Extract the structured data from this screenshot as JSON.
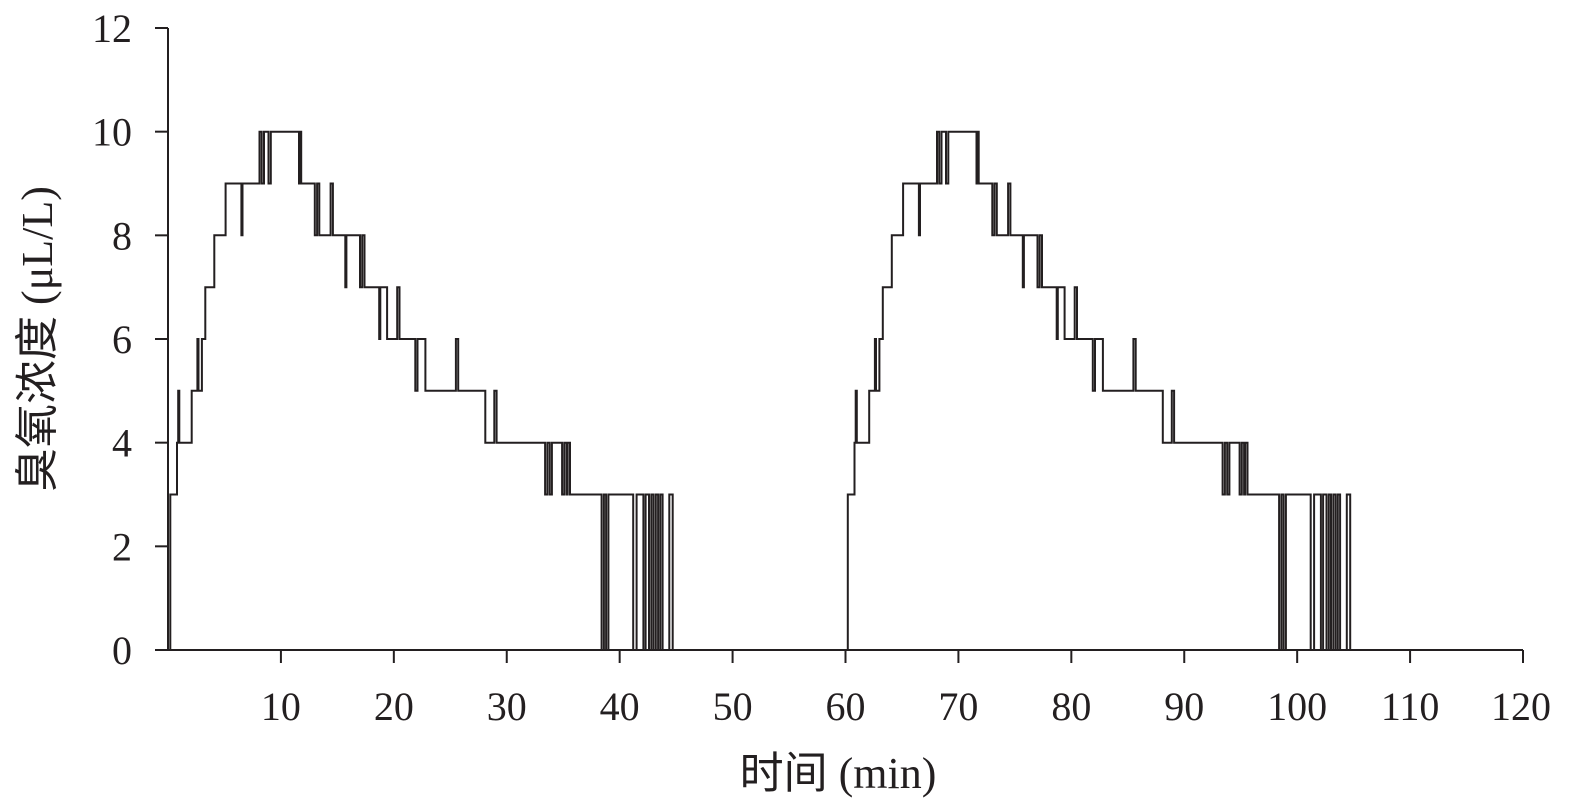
{
  "chart_data": {
    "type": "line",
    "xlabel": "时间 (min)",
    "ylabel": "臭氧浓度 (μL/L)",
    "xlim": [
      0,
      120
    ],
    "ylim": [
      0,
      12
    ],
    "x_ticks": [
      10,
      20,
      30,
      40,
      50,
      60,
      70,
      80,
      90,
      100,
      110,
      120
    ],
    "y_ticks": [
      0,
      2,
      4,
      6,
      8,
      10,
      12
    ],
    "grid": false,
    "series": [
      {
        "step": true,
        "color": "#231f20",
        "points": [
          [
            0.0,
            0
          ],
          [
            0.2,
            3
          ],
          [
            0.7,
            3
          ],
          [
            0.8,
            4
          ],
          [
            0.9,
            5
          ],
          [
            1.0,
            4
          ],
          [
            2.0,
            4
          ],
          [
            2.1,
            5
          ],
          [
            2.5,
            5
          ],
          [
            2.6,
            6
          ],
          [
            2.7,
            5
          ],
          [
            3.0,
            6
          ],
          [
            3.2,
            6
          ],
          [
            3.3,
            7
          ],
          [
            4.0,
            7
          ],
          [
            4.1,
            8
          ],
          [
            5.0,
            8
          ],
          [
            5.1,
            9
          ],
          [
            6.4,
            9
          ],
          [
            6.5,
            8
          ],
          [
            6.6,
            9
          ],
          [
            8.0,
            9
          ],
          [
            8.1,
            10
          ],
          [
            8.3,
            9
          ],
          [
            8.5,
            10
          ],
          [
            8.8,
            10
          ],
          [
            8.9,
            9
          ],
          [
            9.1,
            10
          ],
          [
            11.5,
            10
          ],
          [
            11.6,
            9
          ],
          [
            11.7,
            10
          ],
          [
            11.8,
            9
          ],
          [
            12.9,
            9
          ],
          [
            13.0,
            8
          ],
          [
            13.2,
            9
          ],
          [
            13.4,
            8
          ],
          [
            14.3,
            8
          ],
          [
            14.4,
            9
          ],
          [
            14.6,
            8
          ],
          [
            15.6,
            8
          ],
          [
            15.7,
            7
          ],
          [
            15.8,
            8
          ],
          [
            16.9,
            8
          ],
          [
            17.0,
            7
          ],
          [
            17.2,
            8
          ],
          [
            17.4,
            7
          ],
          [
            18.6,
            7
          ],
          [
            18.7,
            6
          ],
          [
            18.8,
            7
          ],
          [
            19.2,
            7
          ],
          [
            19.4,
            6
          ],
          [
            20.2,
            6
          ],
          [
            20.3,
            7
          ],
          [
            20.5,
            6
          ],
          [
            21.8,
            6
          ],
          [
            21.9,
            5
          ],
          [
            22.1,
            6
          ],
          [
            22.6,
            6
          ],
          [
            22.8,
            5
          ],
          [
            25.4,
            5
          ],
          [
            25.5,
            6
          ],
          [
            25.7,
            5
          ],
          [
            28.0,
            5
          ],
          [
            28.1,
            4
          ],
          [
            28.8,
            4
          ],
          [
            28.9,
            5
          ],
          [
            29.1,
            4
          ],
          [
            33.3,
            4
          ],
          [
            33.4,
            3
          ],
          [
            33.6,
            4
          ],
          [
            33.8,
            3
          ],
          [
            34.0,
            4
          ],
          [
            34.8,
            4
          ],
          [
            34.9,
            3
          ],
          [
            35.1,
            4
          ],
          [
            35.3,
            3
          ],
          [
            35.4,
            4
          ],
          [
            35.6,
            3
          ],
          [
            38.3,
            3
          ],
          [
            38.4,
            0
          ],
          [
            38.6,
            3
          ],
          [
            38.8,
            0
          ],
          [
            39.0,
            3
          ],
          [
            41.1,
            3
          ],
          [
            41.2,
            0
          ],
          [
            41.5,
            3
          ],
          [
            42.0,
            3
          ],
          [
            42.1,
            0
          ],
          [
            42.3,
            3
          ],
          [
            42.6,
            0
          ],
          [
            42.8,
            3
          ],
          [
            43.0,
            0
          ],
          [
            43.2,
            3
          ],
          [
            43.4,
            0
          ],
          [
            43.6,
            3
          ],
          [
            43.8,
            0
          ],
          [
            44.3,
            0
          ],
          [
            44.4,
            3
          ],
          [
            44.6,
            3
          ],
          [
            44.7,
            0
          ],
          [
            45.0,
            0
          ]
        ]
      },
      {
        "step": true,
        "color": "#231f20",
        "points": [
          [
            60.0,
            0
          ],
          [
            60.2,
            3
          ],
          [
            60.7,
            3
          ],
          [
            60.8,
            4
          ],
          [
            60.9,
            5
          ],
          [
            61.0,
            4
          ],
          [
            62.0,
            4
          ],
          [
            62.1,
            5
          ],
          [
            62.5,
            5
          ],
          [
            62.6,
            6
          ],
          [
            62.7,
            5
          ],
          [
            63.0,
            6
          ],
          [
            63.2,
            6
          ],
          [
            63.3,
            7
          ],
          [
            64.0,
            7
          ],
          [
            64.1,
            8
          ],
          [
            65.0,
            8
          ],
          [
            65.1,
            9
          ],
          [
            66.4,
            9
          ],
          [
            66.5,
            8
          ],
          [
            66.6,
            9
          ],
          [
            68.0,
            9
          ],
          [
            68.1,
            10
          ],
          [
            68.3,
            9
          ],
          [
            68.5,
            10
          ],
          [
            68.8,
            10
          ],
          [
            68.9,
            9
          ],
          [
            69.1,
            10
          ],
          [
            71.5,
            10
          ],
          [
            71.6,
            9
          ],
          [
            71.7,
            10
          ],
          [
            71.8,
            9
          ],
          [
            72.9,
            9
          ],
          [
            73.0,
            8
          ],
          [
            73.2,
            9
          ],
          [
            73.4,
            8
          ],
          [
            74.3,
            8
          ],
          [
            74.4,
            9
          ],
          [
            74.6,
            8
          ],
          [
            75.6,
            8
          ],
          [
            75.7,
            7
          ],
          [
            75.8,
            8
          ],
          [
            76.9,
            8
          ],
          [
            77.0,
            7
          ],
          [
            77.2,
            8
          ],
          [
            77.4,
            7
          ],
          [
            78.6,
            7
          ],
          [
            78.7,
            6
          ],
          [
            78.8,
            7
          ],
          [
            79.2,
            7
          ],
          [
            79.4,
            6
          ],
          [
            80.2,
            6
          ],
          [
            80.3,
            7
          ],
          [
            80.5,
            6
          ],
          [
            81.8,
            6
          ],
          [
            81.9,
            5
          ],
          [
            82.1,
            6
          ],
          [
            82.6,
            6
          ],
          [
            82.8,
            5
          ],
          [
            85.4,
            5
          ],
          [
            85.5,
            6
          ],
          [
            85.7,
            5
          ],
          [
            88.0,
            5
          ],
          [
            88.1,
            4
          ],
          [
            88.8,
            4
          ],
          [
            88.9,
            5
          ],
          [
            89.1,
            4
          ],
          [
            93.3,
            4
          ],
          [
            93.4,
            3
          ],
          [
            93.6,
            4
          ],
          [
            93.8,
            3
          ],
          [
            94.0,
            4
          ],
          [
            94.8,
            4
          ],
          [
            94.9,
            3
          ],
          [
            95.1,
            4
          ],
          [
            95.3,
            3
          ],
          [
            95.4,
            4
          ],
          [
            95.6,
            3
          ],
          [
            98.3,
            3
          ],
          [
            98.4,
            0
          ],
          [
            98.6,
            3
          ],
          [
            98.8,
            0
          ],
          [
            99.0,
            3
          ],
          [
            101.1,
            3
          ],
          [
            101.2,
            0
          ],
          [
            101.5,
            3
          ],
          [
            102.0,
            3
          ],
          [
            102.1,
            0
          ],
          [
            102.3,
            3
          ],
          [
            102.6,
            0
          ],
          [
            102.8,
            3
          ],
          [
            103.0,
            0
          ],
          [
            103.2,
            3
          ],
          [
            103.4,
            0
          ],
          [
            103.6,
            3
          ],
          [
            103.8,
            0
          ],
          [
            104.3,
            0
          ],
          [
            104.4,
            3
          ],
          [
            104.6,
            3
          ],
          [
            104.7,
            0
          ],
          [
            105.0,
            0
          ]
        ]
      }
    ]
  }
}
